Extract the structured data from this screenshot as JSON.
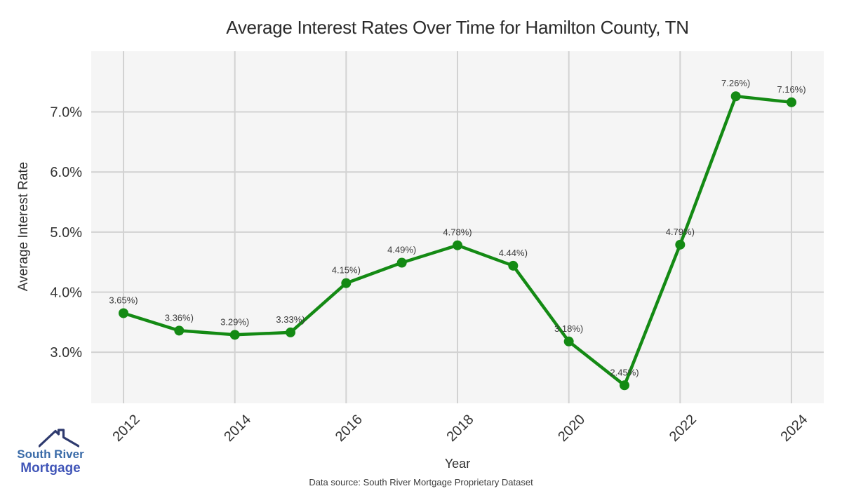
{
  "chart_data": {
    "type": "line",
    "title": "Average Interest Rates Over Time for Hamilton County, TN",
    "xlabel": "Year",
    "ylabel": "Average Interest Rate",
    "x": [
      2012,
      2013,
      2014,
      2015,
      2016,
      2017,
      2018,
      2019,
      2020,
      2021,
      2022,
      2023,
      2024
    ],
    "values": [
      3.65,
      3.36,
      3.29,
      3.33,
      4.15,
      4.49,
      4.78,
      4.44,
      3.18,
      2.45,
      4.79,
      7.26,
      7.16
    ],
    "point_labels": [
      "3.65%)",
      "3.36%)",
      "3.29%)",
      "3.33%)",
      "4.15%)",
      "4.49%)",
      "4.78%)",
      "4.44%)",
      "3.18%)",
      "2.45%)",
      "4.79%)",
      "7.26%)",
      "7.16%)"
    ],
    "xticks": [
      2012,
      2014,
      2016,
      2018,
      2020,
      2022,
      2024
    ],
    "yticks": [
      {
        "value": 3,
        "label": "3.0%"
      },
      {
        "value": 4,
        "label": "4.0%"
      },
      {
        "value": 5,
        "label": "5.0%"
      },
      {
        "value": 6,
        "label": "6.0%"
      },
      {
        "value": 7,
        "label": "7.0%"
      }
    ],
    "xlim": [
      2011.42,
      2024.58
    ],
    "ylim": [
      2.15,
      8.01
    ],
    "grid": true,
    "legend": "none",
    "line_color": "#148a14",
    "marker_color": "#148a14",
    "plot_bg": "#f5f5f5",
    "grid_color": "#d2d2d2",
    "tick_color": "#333333",
    "point_label_color": "#3a3a3a"
  },
  "footer": {
    "datasource": "Data source: South River Mortgage Proprietary Dataset"
  },
  "logo": {
    "line1": "South River",
    "line2": "Mortgage",
    "line1_color": "#3a6ba8",
    "line2_color": "#4156b8",
    "icon": "house-roof-icon",
    "icon_color": "#2e3a6e"
  }
}
